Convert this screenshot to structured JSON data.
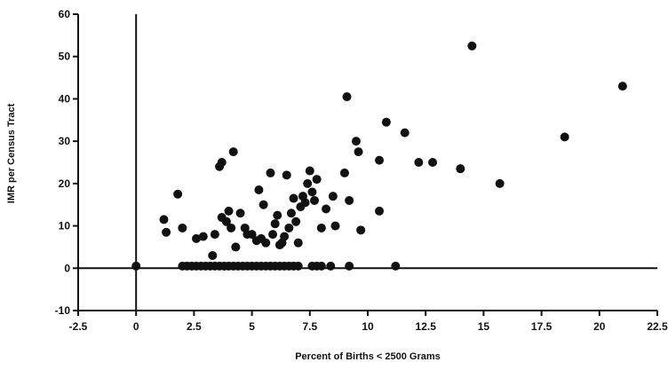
{
  "chart_data": {
    "type": "scatter",
    "title": "",
    "xlabel": "Percent of Births < 2500 Grams",
    "ylabel": "IMR per Census Tract",
    "xlim": [
      -2.5,
      22.5
    ],
    "ylim": [
      -10,
      60
    ],
    "x_ticks": [
      -2.5,
      0,
      2.5,
      5,
      7.5,
      10,
      12.5,
      15,
      17.5,
      20,
      22.5
    ],
    "x_tick_labels": [
      "-2.5",
      "0",
      "2.5",
      "5",
      "7.5",
      "10",
      "12.5",
      "15",
      "17.5",
      "20",
      "22.5"
    ],
    "y_ticks": [
      -10,
      0,
      10,
      20,
      30,
      40,
      50,
      60
    ],
    "y_tick_labels": [
      "-10",
      "0",
      "10",
      "20",
      "30",
      "40",
      "50",
      "60"
    ],
    "grid": false,
    "reference_lines": {
      "x": 0,
      "y": 0
    },
    "marker_color": "#111111",
    "series": [
      {
        "points": [
          [
            0,
            0.5
          ],
          [
            1.2,
            11.5
          ],
          [
            1.3,
            8.5
          ],
          [
            1.8,
            17.5
          ],
          [
            2.0,
            9.5
          ],
          [
            2.6,
            7.0
          ],
          [
            2.9,
            7.5
          ],
          [
            3.3,
            3.0
          ],
          [
            3.4,
            8.0
          ],
          [
            3.6,
            24.0
          ],
          [
            3.7,
            25.0
          ],
          [
            3.7,
            12.0
          ],
          [
            3.9,
            11.0
          ],
          [
            4.0,
            13.5
          ],
          [
            4.1,
            9.5
          ],
          [
            4.2,
            27.5
          ],
          [
            4.3,
            5.0
          ],
          [
            4.5,
            13.0
          ],
          [
            4.7,
            9.5
          ],
          [
            4.8,
            8.0
          ],
          [
            5.0,
            8.0
          ],
          [
            5.2,
            6.5
          ],
          [
            5.3,
            18.5
          ],
          [
            5.4,
            7.0
          ],
          [
            5.5,
            15.0
          ],
          [
            5.6,
            6.0
          ],
          [
            5.8,
            22.5
          ],
          [
            5.9,
            8.0
          ],
          [
            6.0,
            10.5
          ],
          [
            6.1,
            12.5
          ],
          [
            6.2,
            5.5
          ],
          [
            6.3,
            6.0
          ],
          [
            6.4,
            7.5
          ],
          [
            6.5,
            22.0
          ],
          [
            6.6,
            9.5
          ],
          [
            6.7,
            13.0
          ],
          [
            6.8,
            16.5
          ],
          [
            6.9,
            11.0
          ],
          [
            7.0,
            6.0
          ],
          [
            7.1,
            14.5
          ],
          [
            7.2,
            17.0
          ],
          [
            7.3,
            15.5
          ],
          [
            7.4,
            20.0
          ],
          [
            7.5,
            23.0
          ],
          [
            7.6,
            18.0
          ],
          [
            7.7,
            16.0
          ],
          [
            7.8,
            21.0
          ],
          [
            8.0,
            9.5
          ],
          [
            8.2,
            14.0
          ],
          [
            8.5,
            17.0
          ],
          [
            8.6,
            10.0
          ],
          [
            9.0,
            22.5
          ],
          [
            9.1,
            40.5
          ],
          [
            9.2,
            16.0
          ],
          [
            9.5,
            30.0
          ],
          [
            9.6,
            27.5
          ],
          [
            9.7,
            9.0
          ],
          [
            10.5,
            25.5
          ],
          [
            10.5,
            13.5
          ],
          [
            10.8,
            34.5
          ],
          [
            11.6,
            32.0
          ],
          [
            12.2,
            25.0
          ],
          [
            12.8,
            25.0
          ],
          [
            14.0,
            23.5
          ],
          [
            14.5,
            52.5
          ],
          [
            15.7,
            20.0
          ],
          [
            18.5,
            31.0
          ],
          [
            21.0,
            43.0
          ],
          [
            2.0,
            0.5
          ],
          [
            2.2,
            0.5
          ],
          [
            2.4,
            0.5
          ],
          [
            2.6,
            0.5
          ],
          [
            2.8,
            0.5
          ],
          [
            3.0,
            0.5
          ],
          [
            3.2,
            0.5
          ],
          [
            3.4,
            0.5
          ],
          [
            3.6,
            0.5
          ],
          [
            3.8,
            0.5
          ],
          [
            4.0,
            0.5
          ],
          [
            4.2,
            0.5
          ],
          [
            4.4,
            0.5
          ],
          [
            4.6,
            0.5
          ],
          [
            4.8,
            0.5
          ],
          [
            5.0,
            0.5
          ],
          [
            5.2,
            0.5
          ],
          [
            5.4,
            0.5
          ],
          [
            5.6,
            0.5
          ],
          [
            5.8,
            0.5
          ],
          [
            6.0,
            0.5
          ],
          [
            6.2,
            0.5
          ],
          [
            6.4,
            0.5
          ],
          [
            6.6,
            0.5
          ],
          [
            6.8,
            0.5
          ],
          [
            7.0,
            0.5
          ],
          [
            7.6,
            0.5
          ],
          [
            7.8,
            0.5
          ],
          [
            8.0,
            0.5
          ],
          [
            8.4,
            0.5
          ],
          [
            9.2,
            0.5
          ],
          [
            11.2,
            0.5
          ]
        ]
      }
    ]
  }
}
